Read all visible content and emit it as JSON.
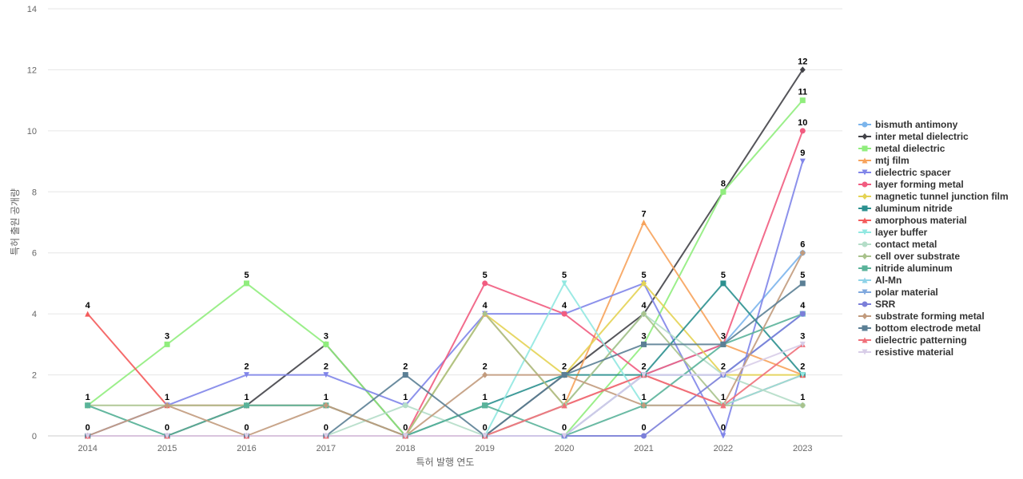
{
  "chart_data": {
    "type": "line",
    "xlabel": "특허 발행 연도",
    "ylabel": "특허 출원 공개량",
    "ylim": [
      0,
      14
    ],
    "yticks": [
      0,
      2,
      4,
      6,
      8,
      10,
      12,
      14
    ],
    "grid": "horizontal",
    "legend_position": "right",
    "categories": [
      "2014",
      "2015",
      "2016",
      "2017",
      "2018",
      "2019",
      "2020",
      "2021",
      "2022",
      "2023"
    ],
    "series": [
      {
        "name": "bismuth antimony",
        "color": "#7cb5ec",
        "marker": "circle",
        "values": [
          0,
          0,
          0,
          0,
          0,
          0,
          0,
          2,
          3,
          6
        ]
      },
      {
        "name": "inter metal dielectric",
        "color": "#434348",
        "marker": "diamond",
        "values": [
          0,
          0,
          1,
          3,
          0,
          0,
          2,
          4,
          8,
          12
        ]
      },
      {
        "name": "metal dielectric",
        "color": "#90ed7d",
        "marker": "square",
        "values": [
          1,
          3,
          5,
          3,
          0,
          0,
          0,
          3,
          8,
          11
        ]
      },
      {
        "name": "mtj film",
        "color": "#f7a35c",
        "marker": "triangle",
        "values": [
          0,
          0,
          0,
          0,
          0,
          4,
          1,
          7,
          3,
          2
        ]
      },
      {
        "name": "dielectric spacer",
        "color": "#8085e9",
        "marker": "triangle-down",
        "values": [
          0,
          1,
          2,
          2,
          1,
          4,
          4,
          5,
          0,
          9
        ]
      },
      {
        "name": "layer forming metal",
        "color": "#f15c80",
        "marker": "circle",
        "values": [
          0,
          0,
          0,
          0,
          0,
          5,
          4,
          2,
          3,
          10
        ]
      },
      {
        "name": "magnetic tunnel junction film",
        "color": "#e4d354",
        "marker": "diamond",
        "values": [
          0,
          0,
          0,
          0,
          0,
          4,
          2,
          5,
          2,
          2
        ]
      },
      {
        "name": "aluminum nitride",
        "color": "#2b908f",
        "marker": "square",
        "values": [
          0,
          0,
          0,
          0,
          0,
          1,
          2,
          2,
          5,
          2
        ]
      },
      {
        "name": "amorphous material",
        "color": "#f45b5b",
        "marker": "triangle",
        "values": [
          4,
          1,
          1,
          1,
          0,
          0,
          1,
          2,
          1,
          2
        ]
      },
      {
        "name": "layer buffer",
        "color": "#91e8e1",
        "marker": "triangle-down",
        "values": [
          0,
          0,
          0,
          0,
          0,
          0,
          5,
          1,
          1,
          2
        ]
      },
      {
        "name": "contact metal",
        "color": "#b4ddc8",
        "marker": "circle",
        "values": [
          1,
          0,
          0,
          0,
          1,
          0,
          1,
          4,
          2,
          1
        ]
      },
      {
        "name": "cell over substrate",
        "color": "#a9c28c",
        "marker": "diamond",
        "values": [
          1,
          1,
          1,
          1,
          0,
          4,
          1,
          4,
          1,
          1
        ]
      },
      {
        "name": "nitride aluminum",
        "color": "#5ab39a",
        "marker": "square",
        "values": [
          1,
          0,
          1,
          1,
          0,
          1,
          0,
          1,
          3,
          4
        ]
      },
      {
        "name": "Al-Mn",
        "color": "#8fd3e8",
        "marker": "triangle",
        "values": [
          0,
          0,
          0,
          0,
          0,
          0,
          0,
          2,
          2,
          4
        ]
      },
      {
        "name": "polar material",
        "color": "#7fa8de",
        "marker": "triangle-down",
        "values": [
          0,
          0,
          0,
          0,
          0,
          0,
          0,
          2,
          2,
          4
        ]
      },
      {
        "name": "SRR",
        "color": "#7b7fd9",
        "marker": "circle",
        "values": [
          0,
          0,
          0,
          0,
          0,
          0,
          0,
          0,
          2,
          4
        ]
      },
      {
        "name": "substrate forming metal",
        "color": "#c29b7d",
        "marker": "diamond",
        "values": [
          0,
          1,
          0,
          1,
          0,
          2,
          2,
          1,
          1,
          6
        ]
      },
      {
        "name": "bottom electrode metal",
        "color": "#5b7f95",
        "marker": "square",
        "values": [
          0,
          0,
          0,
          0,
          2,
          0,
          2,
          3,
          3,
          5
        ]
      },
      {
        "name": "dielectric patterning",
        "color": "#f0707a",
        "marker": "triangle",
        "values": [
          0,
          0,
          0,
          0,
          0,
          0,
          1,
          2,
          1,
          3
        ]
      },
      {
        "name": "resistive material",
        "color": "#d8cde8",
        "marker": "triangle-down",
        "values": [
          0,
          0,
          0,
          0,
          0,
          0,
          0,
          2,
          2,
          3
        ]
      }
    ],
    "data_labels": [
      {
        "x": "2014",
        "text": "4",
        "value": 4
      },
      {
        "x": "2014",
        "text": "1",
        "value": 1
      },
      {
        "x": "2014",
        "text": "0",
        "value": 0
      },
      {
        "x": "2015",
        "text": "3",
        "value": 3
      },
      {
        "x": "2015",
        "text": "1",
        "value": 1
      },
      {
        "x": "2015",
        "text": "0",
        "value": 0
      },
      {
        "x": "2016",
        "text": "5",
        "value": 5
      },
      {
        "x": "2016",
        "text": "2",
        "value": 2
      },
      {
        "x": "2016",
        "text": "1",
        "value": 1
      },
      {
        "x": "2016",
        "text": "0",
        "value": 0
      },
      {
        "x": "2017",
        "text": "3",
        "value": 3
      },
      {
        "x": "2017",
        "text": "2",
        "value": 2
      },
      {
        "x": "2017",
        "text": "1",
        "value": 1
      },
      {
        "x": "2017",
        "text": "0",
        "value": 0
      },
      {
        "x": "2018",
        "text": "2",
        "value": 2
      },
      {
        "x": "2018",
        "text": "1",
        "value": 1
      },
      {
        "x": "2018",
        "text": "0",
        "value": 0
      },
      {
        "x": "2019",
        "text": "5",
        "value": 5
      },
      {
        "x": "2019",
        "text": "4",
        "value": 4
      },
      {
        "x": "2019",
        "text": "2",
        "value": 2
      },
      {
        "x": "2019",
        "text": "1",
        "value": 1
      },
      {
        "x": "2019",
        "text": "0",
        "value": 0
      },
      {
        "x": "2020",
        "text": "5",
        "value": 5
      },
      {
        "x": "2020",
        "text": "4",
        "value": 4
      },
      {
        "x": "2020",
        "text": "2",
        "value": 2
      },
      {
        "x": "2020",
        "text": "1",
        "value": 1
      },
      {
        "x": "2020",
        "text": "0",
        "value": 0
      },
      {
        "x": "2021",
        "text": "7",
        "value": 7
      },
      {
        "x": "2021",
        "text": "5",
        "value": 5
      },
      {
        "x": "2021",
        "text": "4",
        "value": 4
      },
      {
        "x": "2021",
        "text": "3",
        "value": 3
      },
      {
        "x": "2021",
        "text": "2",
        "value": 2
      },
      {
        "x": "2021",
        "text": "1",
        "value": 1
      },
      {
        "x": "2021",
        "text": "0",
        "value": 0
      },
      {
        "x": "2022",
        "text": "8",
        "value": 8
      },
      {
        "x": "2022",
        "text": "5",
        "value": 5
      },
      {
        "x": "2022",
        "text": "3",
        "value": 3
      },
      {
        "x": "2022",
        "text": "2",
        "value": 2
      },
      {
        "x": "2022",
        "text": "1",
        "value": 1
      },
      {
        "x": "2022",
        "text": "0",
        "value": 0
      },
      {
        "x": "2023",
        "text": "12",
        "value": 12
      },
      {
        "x": "2023",
        "text": "11",
        "value": 11
      },
      {
        "x": "2023",
        "text": "10",
        "value": 10
      },
      {
        "x": "2023",
        "text": "9",
        "value": 9
      },
      {
        "x": "2023",
        "text": "6",
        "value": 6
      },
      {
        "x": "2023",
        "text": "5",
        "value": 5
      },
      {
        "x": "2023",
        "text": "4",
        "value": 4
      },
      {
        "x": "2023",
        "text": "3",
        "value": 3
      },
      {
        "x": "2023",
        "text": "2",
        "value": 2
      },
      {
        "x": "2023",
        "text": "1",
        "value": 1
      }
    ]
  }
}
